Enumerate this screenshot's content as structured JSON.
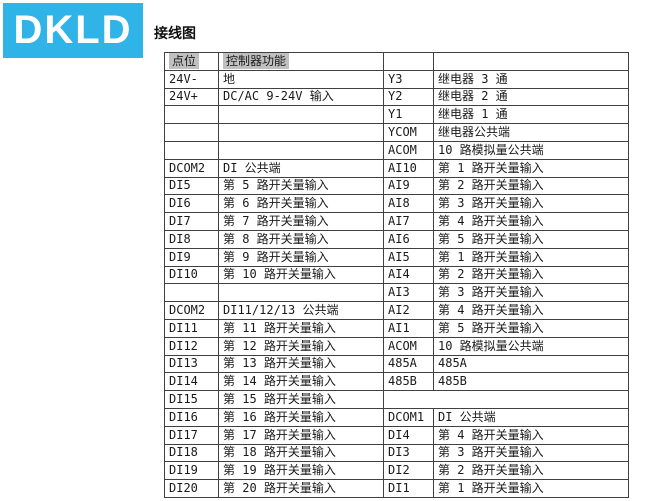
{
  "logo": {
    "text": "DKLD",
    "bg_color": "#30B4E8",
    "text_color": "#FFFFFF"
  },
  "page_title": "接线图",
  "table": {
    "col1_header": "点位",
    "col2_header": "控制器功能",
    "header_highlight_color": "#C0C0C0",
    "border_color": "#404040",
    "rows": [
      {
        "c1": "24V-",
        "c2": "地",
        "c3": "Y3",
        "c4": "继电器 3 通"
      },
      {
        "c1": "24V+",
        "c2": "DC/AC 9-24V 输入",
        "c3": "Y2",
        "c4": "继电器 2 通"
      },
      {
        "c1": "",
        "c2": "",
        "c3": "Y1",
        "c4": "继电器 1 通"
      },
      {
        "c1": "",
        "c2": "",
        "c3": "YCOM",
        "c4": "继电器公共端"
      },
      {
        "c1": "",
        "c2": "",
        "c3": "ACOM",
        "c4": "10 路模拟量公共端"
      },
      {
        "c1": "DCOM2",
        "c2": "DI 公共端",
        "c3": "AI10",
        "c4": "第 1 路开关量输入"
      },
      {
        "c1": "DI5",
        "c2": "第 5 路开关量输入",
        "c3": "AI9",
        "c4": "第 2 路开关量输入"
      },
      {
        "c1": "DI6",
        "c2": "第 6 路开关量输入",
        "c3": "AI8",
        "c4": "第 3 路开关量输入"
      },
      {
        "c1": "DI7",
        "c2": "第 7 路开关量输入",
        "c3": "AI7",
        "c4": "第 4 路开关量输入"
      },
      {
        "c1": "DI8",
        "c2": "第 8 路开关量输入",
        "c3": "AI6",
        "c4": "第 5 路开关量输入"
      },
      {
        "c1": "DI9",
        "c2": "第 9 路开关量输入",
        "c3": "AI5",
        "c4": "第 1 路开关量输入"
      },
      {
        "c1": "DI10",
        "c2": "第 10 路开关量输入",
        "c3": "AI4",
        "c4": "第 2 路开关量输入"
      },
      {
        "c1": "",
        "c2": "",
        "c3": "AI3",
        "c4": "第 3 路开关量输入"
      },
      {
        "c1": "DCOM2",
        "c2": "DI11/12/13 公共端",
        "c3": "AI2",
        "c4": "第 4 路开关量输入"
      },
      {
        "c1": "DI11",
        "c2": "第 11 路开关量输入",
        "c3": "AI1",
        "c4": "第 5 路开关量输入"
      },
      {
        "c1": "DI12",
        "c2": "第 12 路开关量输入",
        "c3": "ACOM",
        "c4": "10 路模拟量公共端"
      },
      {
        "c1": "DI13",
        "c2": "第 13 路开关量输入",
        "c3": "485A",
        "c4": "485A"
      },
      {
        "c1": "DI14",
        "c2": "第 14 路开关量输入",
        "c3": "485B",
        "c4": "485B"
      },
      {
        "c1": "DI15",
        "c2": "第 15 路开关量输入",
        "c3": "",
        "c4": "",
        "merged_right": true
      },
      {
        "c1": "DI16",
        "c2": "第 16 路开关量输入",
        "c3": "DCOM1",
        "c4": "DI 公共端"
      },
      {
        "c1": "DI17",
        "c2": "第 17 路开关量输入",
        "c3": "DI4",
        "c4": "第 4 路开关量输入"
      },
      {
        "c1": "DI18",
        "c2": "第 18 路开关量输入",
        "c3": "DI3",
        "c4": "第 3 路开关量输入"
      },
      {
        "c1": "DI19",
        "c2": "第 19 路开关量输入",
        "c3": "DI2",
        "c4": "第 2 路开关量输入"
      },
      {
        "c1": "DI20",
        "c2": "第 20 路开关量输入",
        "c3": "DI1",
        "c4": "第 1 路开关量输入"
      }
    ]
  }
}
